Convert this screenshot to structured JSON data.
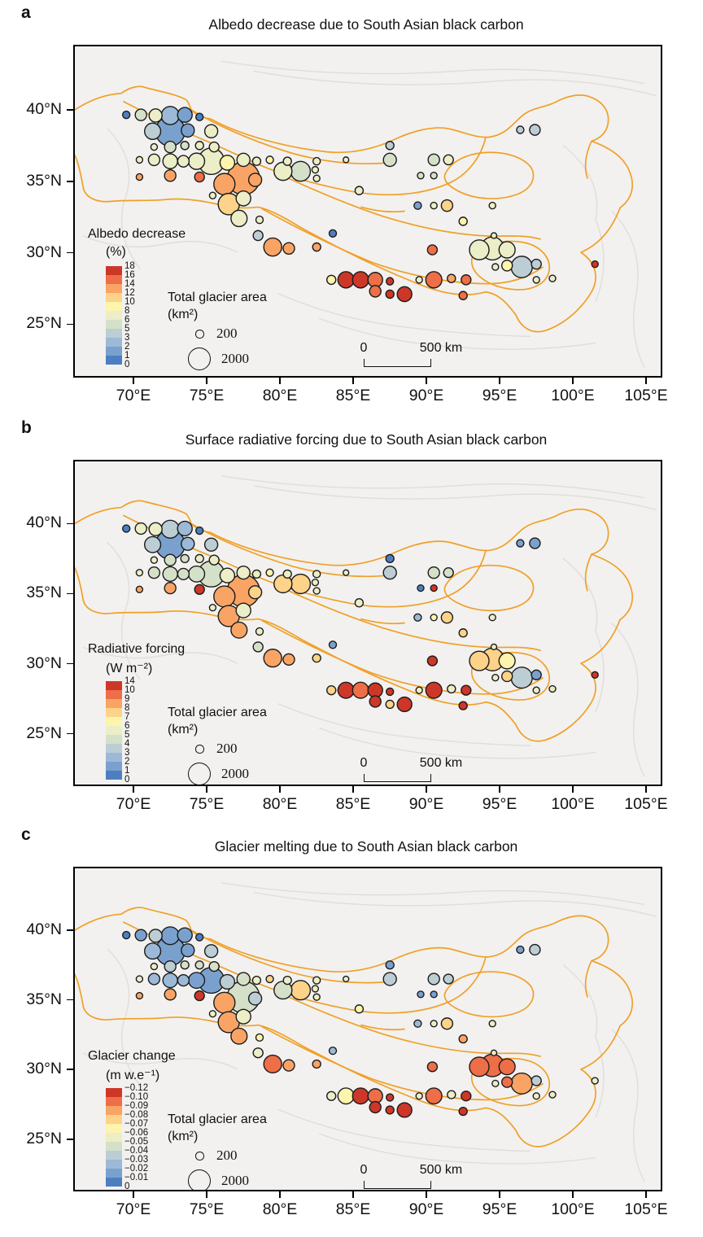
{
  "figure": {
    "panels": [
      {
        "label": "a",
        "title": "Albedo decrease due to South Asian black carbon",
        "legend": {
          "title": "Albedo decrease",
          "unit": "(%)",
          "tick_labels": [
            "18",
            "16",
            "14",
            "12",
            "10",
            "8",
            "6",
            "5",
            "3",
            "2",
            "1",
            "0"
          ]
        },
        "bin_edges": [
          0,
          1,
          2,
          3,
          5,
          6,
          8,
          10,
          12,
          14,
          16,
          18
        ]
      },
      {
        "label": "b",
        "title": "Surface radiative forcing due to South Asian black carbon",
        "legend": {
          "title": "Radiative forcing",
          "unit": "(W m⁻²)",
          "tick_labels": [
            "14",
            "10",
            "9",
            "8",
            "7",
            "6",
            "5",
            "4",
            "3",
            "2",
            "1",
            "0"
          ]
        },
        "bin_edges": [
          0,
          1,
          2,
          3,
          4,
          5,
          6,
          7,
          8,
          9,
          10,
          14
        ]
      },
      {
        "label": "c",
        "title": "Glacier melting due to South Asian black carbon",
        "legend": {
          "title": "Glacier change",
          "unit": "(m w.e⁻¹)",
          "tick_labels": [
            "−0.12",
            "−0.10",
            "−0.09",
            "−0.08",
            "−0.07",
            "−0.06",
            "−0.05",
            "−0.04",
            "−0.03",
            "−0.02",
            "−0.01",
            "0"
          ]
        },
        "bin_edges": [
          0,
          0.01,
          0.02,
          0.03,
          0.04,
          0.05,
          0.06,
          0.07,
          0.08,
          0.09,
          0.1,
          0.12
        ]
      }
    ],
    "size_legend": {
      "title": "Total glacier area",
      "unit": "(km²)",
      "entries": [
        {
          "area_km2": 200,
          "label": "200"
        },
        {
          "area_km2": 2000,
          "label": "2000"
        }
      ]
    },
    "scale_bar": {
      "start_label": "0",
      "end_label": "500 km"
    },
    "axes": {
      "x_tick_labels": [
        "70°E",
        "75°E",
        "80°E",
        "85°E",
        "90°E",
        "95°E",
        "100°E",
        "105°E"
      ],
      "y_tick_labels": [
        "40°N",
        "35°N",
        "30°N",
        "25°N"
      ]
    },
    "colors": {
      "palette_low_to_high": [
        "#4d7fc0",
        "#7aa1ce",
        "#9cbad7",
        "#bccdd4",
        "#d5e0c8",
        "#ebeec6",
        "#fdf4ad",
        "#fdd289",
        "#f9a465",
        "#ee6e47",
        "#cd3728"
      ],
      "boundary": "#F0A028",
      "bubble_stroke": "#1b1b1b",
      "map_background": "#f2f1ef",
      "frame": "#000000"
    }
  },
  "chart_data": {
    "type": "scatter",
    "description": "Three bubble maps over the Tibetan Plateau. Bubble size = total glacier area (km²); bubble color = albedo decrease (%, panel a), surface radiative forcing (W m⁻², panel b), glacier mass change (m w.e⁻¹, panel c) due to South Asian black carbon.",
    "x_axis": {
      "ticks_deg_e": [
        70,
        75,
        80,
        85,
        90,
        95,
        100,
        105
      ]
    },
    "y_axis": {
      "ticks_deg_n": [
        40,
        35,
        30,
        25
      ]
    },
    "legend_position": "lower left inside map",
    "point_fields": [
      "lon_e",
      "lat_n",
      "glacier_area_km2",
      "albedo_decrease_pct",
      "radiative_forcing_wm2",
      "glacier_change_mwe"
    ],
    "points": [
      [
        69.4,
        39.65,
        225,
        0.8,
        0.8,
        -0.008
      ],
      [
        70.4,
        39.65,
        550,
        5.5,
        5.5,
        -0.015
      ],
      [
        71.4,
        39.6,
        710,
        7,
        5.5,
        -0.035
      ],
      [
        72.4,
        39.6,
        1340,
        2.8,
        3.5,
        -0.018
      ],
      [
        73.4,
        39.65,
        900,
        1.8,
        2.8,
        -0.015
      ],
      [
        74.4,
        39.5,
        225,
        0.8,
        0.8,
        -0.008
      ],
      [
        71.2,
        38.5,
        1100,
        4,
        3.5,
        -0.022
      ],
      [
        72.4,
        38.5,
        3600,
        1.6,
        1.6,
        -0.015
      ],
      [
        73.6,
        38.56,
        710,
        1.8,
        2.5,
        -0.015
      ],
      [
        75.2,
        38.5,
        710,
        6.5,
        3.5,
        -0.035
      ],
      [
        71.3,
        37.4,
        180,
        7,
        5.5,
        -0.055
      ],
      [
        72.4,
        37.4,
        550,
        5.5,
        4.5,
        -0.035
      ],
      [
        73.4,
        37.5,
        280,
        5.5,
        4.5,
        -0.045
      ],
      [
        74.4,
        37.5,
        280,
        6.5,
        5.5,
        -0.045
      ],
      [
        75.4,
        37.4,
        400,
        7,
        5.5,
        -0.045
      ],
      [
        70.3,
        36.5,
        180,
        6.5,
        5.5,
        -0.055
      ],
      [
        71.3,
        36.5,
        550,
        7,
        4.5,
        -0.025
      ],
      [
        72.4,
        36.4,
        900,
        7,
        4.5,
        -0.025
      ],
      [
        73.3,
        36.4,
        550,
        6.5,
        4.5,
        -0.025
      ],
      [
        74.2,
        36.4,
        1100,
        7,
        4.5,
        -0.015
      ],
      [
        75.2,
        36.4,
        2840,
        6.5,
        4.5,
        -0.015
      ],
      [
        76.3,
        36.3,
        900,
        8.5,
        5.5,
        -0.035
      ],
      [
        77.4,
        36.5,
        710,
        7,
        5.5,
        -0.045
      ],
      [
        78.3,
        36.4,
        280,
        7,
        5.5,
        -0.055
      ],
      [
        79.2,
        36.5,
        225,
        8.5,
        6.5,
        -0.075
      ],
      [
        80.4,
        36.4,
        280,
        7,
        5.5,
        -0.055
      ],
      [
        82.4,
        36.4,
        225,
        7,
        5.5,
        -0.055
      ],
      [
        76.1,
        34.8,
        1880,
        12.5,
        8.5,
        -0.085
      ],
      [
        77.4,
        35.2,
        4400,
        12.5,
        8.5,
        -0.045
      ],
      [
        78.2,
        35.1,
        710,
        12.5,
        7.5,
        -0.035
      ],
      [
        74.4,
        35.3,
        400,
        15,
        11,
        -0.105
      ],
      [
        72.4,
        35.4,
        550,
        13,
        8.5,
        -0.082
      ],
      [
        70.3,
        35.3,
        180,
        13,
        8.5,
        -0.085
      ],
      [
        76.4,
        33.4,
        1880,
        11,
        8.3,
        -0.088
      ],
      [
        77.4,
        33.8,
        900,
        7,
        5.5,
        -0.055
      ],
      [
        75.3,
        34.0,
        180,
        7,
        5.5,
        -0.055
      ],
      [
        77.1,
        32.4,
        1100,
        7,
        8.2,
        -0.088
      ],
      [
        78.5,
        32.3,
        225,
        7,
        5.5,
        -0.065
      ],
      [
        78.4,
        31.2,
        400,
        4,
        4.5,
        -0.05
      ],
      [
        79.4,
        30.4,
        1340,
        13,
        8.5,
        -0.09
      ],
      [
        80.5,
        30.3,
        550,
        13,
        8.5,
        -0.085
      ],
      [
        82.4,
        30.4,
        280,
        13,
        7.5,
        -0.08
      ],
      [
        83.5,
        31.35,
        225,
        0.8,
        1.5,
        -0.02
      ],
      [
        83.4,
        28.1,
        340,
        8.5,
        7.2,
        -0.055
      ],
      [
        84.4,
        28.1,
        1100,
        17,
        11,
        -0.065
      ],
      [
        85.4,
        28.1,
        1100,
        17,
        9.5,
        -0.11
      ],
      [
        86.4,
        28.1,
        900,
        15,
        11,
        -0.098
      ],
      [
        87.4,
        28.0,
        225,
        17,
        10.5,
        -0.105
      ],
      [
        86.4,
        27.3,
        550,
        15,
        11,
        -0.105
      ],
      [
        87.4,
        27.1,
        280,
        17,
        7.3,
        -0.105
      ],
      [
        88.4,
        27.1,
        900,
        17,
        11,
        -0.115
      ],
      [
        89.4,
        28.1,
        180,
        7,
        5.5,
        -0.055
      ],
      [
        90.4,
        28.1,
        1100,
        15,
        10.5,
        -0.095
      ],
      [
        91.6,
        28.2,
        280,
        13,
        5.5,
        -0.055
      ],
      [
        92.6,
        28.1,
        400,
        15,
        10.5,
        -0.105
      ],
      [
        92.4,
        27.0,
        280,
        15,
        10.5,
        -0.105
      ],
      [
        90.3,
        30.2,
        400,
        15,
        11,
        -0.095
      ],
      [
        97.4,
        28.1,
        180,
        7,
        5.5,
        -0.055
      ],
      [
        98.5,
        28.2,
        180,
        7,
        5.5,
        -0.055
      ],
      [
        101.4,
        29.2,
        180,
        17,
        10.5,
        -0.05
      ],
      [
        93.5,
        30.2,
        1600,
        7,
        7.2,
        -0.095
      ],
      [
        94.4,
        30.3,
        2180,
        7,
        7.2,
        -0.095
      ],
      [
        95.4,
        30.2,
        1100,
        7,
        6.3,
        -0.09
      ],
      [
        94.6,
        29.0,
        180,
        7,
        5.5,
        -0.055
      ],
      [
        95.4,
        29.1,
        470,
        8.5,
        7.3,
        -0.09
      ],
      [
        96.4,
        29.0,
        1880,
        4,
        3.5,
        -0.085
      ],
      [
        97.4,
        29.2,
        400,
        3,
        1.5,
        -0.035
      ],
      [
        94.5,
        31.2,
        140,
        7,
        5.5,
        -0.055
      ],
      [
        94.4,
        33.3,
        180,
        7,
        5.5,
        -0.055
      ],
      [
        91.3,
        33.3,
        550,
        11,
        7.3,
        -0.075
      ],
      [
        90.4,
        33.3,
        180,
        7,
        6.5,
        -0.055
      ],
      [
        89.3,
        33.3,
        225,
        1.8,
        2.5,
        -0.025
      ],
      [
        92.4,
        32.2,
        280,
        8.5,
        7.3,
        -0.085
      ],
      [
        85.3,
        34.35,
        280,
        7,
        5.5,
        -0.068
      ],
      [
        84.4,
        36.5,
        140,
        7,
        5.5,
        -0.055
      ],
      [
        87.4,
        36.5,
        710,
        5.5,
        3.5,
        -0.035
      ],
      [
        87.4,
        37.5,
        280,
        3,
        0.8,
        -0.015
      ],
      [
        90.4,
        36.5,
        550,
        5.5,
        4.5,
        -0.035
      ],
      [
        91.4,
        36.5,
        400,
        6.5,
        4.5,
        -0.035
      ],
      [
        89.5,
        35.4,
        180,
        5.5,
        0.8,
        -0.01
      ],
      [
        90.4,
        35.4,
        180,
        5.5,
        12,
        -0.018
      ],
      [
        96.3,
        38.6,
        225,
        3,
        1.2,
        -0.01
      ],
      [
        97.3,
        38.6,
        470,
        3.5,
        1.6,
        -0.035
      ],
      [
        80.1,
        35.7,
        1340,
        7,
        7.5,
        -0.045
      ],
      [
        81.3,
        35.7,
        1600,
        5.5,
        7.5,
        -0.078
      ],
      [
        82.3,
        35.8,
        180,
        7,
        5.5,
        -0.055
      ],
      [
        82.4,
        35.2,
        180,
        7,
        5.5,
        -0.055
      ]
    ]
  }
}
